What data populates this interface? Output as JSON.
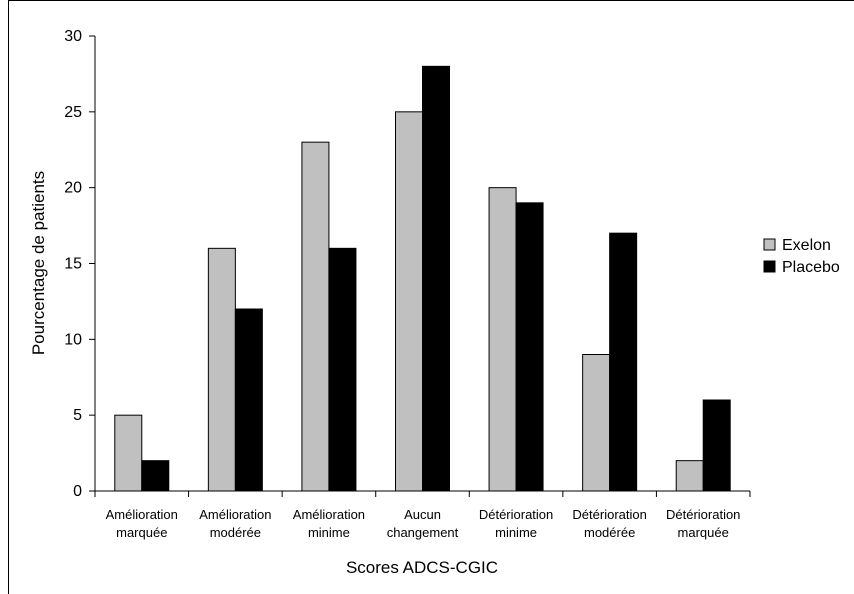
{
  "chart_data": {
    "type": "bar",
    "categories": [
      [
        "Amélioration",
        "marquée"
      ],
      [
        "Amélioration",
        "modérée"
      ],
      [
        "Amélioration",
        "minime"
      ],
      [
        "Aucun",
        "changement"
      ],
      [
        "Détérioration",
        "minime"
      ],
      [
        "Détérioration",
        "modérée"
      ],
      [
        "Détérioration",
        "marquée"
      ]
    ],
    "series": [
      {
        "name": "Exelon",
        "color": "#c0c0c0",
        "values": [
          5,
          16,
          23,
          25,
          20,
          9,
          2
        ]
      },
      {
        "name": "Placebo",
        "color": "#000000",
        "values": [
          2,
          12,
          16,
          28,
          19,
          17,
          6
        ]
      }
    ],
    "xlabel": "Scores ADCS-CGIC",
    "ylabel": "Pourcentage de patients",
    "ylim": [
      0,
      30
    ],
    "yticks": [
      "0",
      "5",
      "10",
      "15",
      "20",
      "25",
      "30"
    ],
    "grid": false,
    "legend_position": "right"
  }
}
